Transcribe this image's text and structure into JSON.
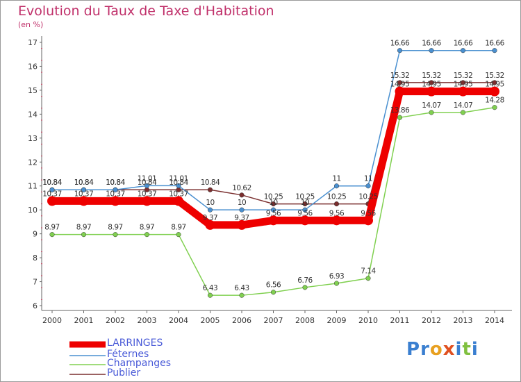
{
  "title": "Evolution du Taux de Taxe d'Habitation",
  "subtitle": "(en %)",
  "logo_text": "Proxiti",
  "colors": {
    "title": "#c0306a",
    "legend_text": "#4a5bd8",
    "axis": "#555555",
    "grid": "#ececec"
  },
  "chart_data": {
    "type": "line",
    "title": "Evolution du Taux de Taxe d'Habitation",
    "ylabel": "(en %)",
    "xlabel": "",
    "categories": [
      "2000",
      "2001",
      "2002",
      "2003",
      "2004",
      "2005",
      "2006",
      "2007",
      "2008",
      "2009",
      "2010",
      "2011",
      "2012",
      "2013",
      "2014"
    ],
    "ylim": [
      6,
      17
    ],
    "yticks": [
      6,
      7,
      8,
      9,
      10,
      11,
      12,
      13,
      14,
      15,
      16,
      17
    ],
    "grid": false,
    "legend_position": "bottom-left",
    "series": [
      {
        "name": "LARRINGES",
        "color": "#ee0000",
        "values": [
          10.37,
          10.37,
          10.37,
          10.37,
          10.37,
          9.37,
          9.37,
          9.56,
          9.56,
          9.56,
          9.56,
          14.95,
          14.95,
          14.95,
          14.95
        ],
        "labels": [
          "10.37",
          "10.37",
          "10.37",
          "10.37",
          "10.37",
          "9.37",
          "9.37",
          "9.56",
          "9.56",
          "9.56",
          "9.56",
          "14.95",
          "14.95",
          "14.95",
          "14.95"
        ]
      },
      {
        "name": "Féternes",
        "color": "#4a90d0",
        "values": [
          10.84,
          10.84,
          10.84,
          11.01,
          11.01,
          10,
          10,
          10,
          10,
          11,
          11,
          16.66,
          16.66,
          16.66,
          16.66
        ],
        "labels": [
          "10.84",
          "10.84",
          "10.84",
          "11.01",
          "11.01",
          "10",
          "10",
          "10",
          "10",
          "11",
          "11",
          "16.66",
          "16.66",
          "16.66",
          "16.66"
        ]
      },
      {
        "name": "Champanges",
        "color": "#80d050",
        "values": [
          8.97,
          8.97,
          8.97,
          8.97,
          8.97,
          6.43,
          6.43,
          6.56,
          6.76,
          6.93,
          7.14,
          13.86,
          14.07,
          14.07,
          14.28
        ],
        "labels": [
          "8.97",
          "8.97",
          "8.97",
          "8.97",
          "8.97",
          "6.43",
          "6.43",
          "6.56",
          "6.76",
          "6.93",
          "7.14",
          "13.86",
          "14.07",
          "14.07",
          "14.28"
        ]
      },
      {
        "name": "Publier",
        "color": "#7a2e2e",
        "values": [
          10.84,
          10.84,
          10.84,
          10.84,
          10.84,
          10.84,
          10.62,
          10.25,
          10.25,
          10.25,
          10.25,
          15.32,
          15.32,
          15.32,
          15.32
        ],
        "labels": [
          "10.84",
          "10.84",
          "10.84",
          "10.84",
          "10.84",
          "10.84",
          "10.62",
          "10.25",
          "10.25",
          "10.25",
          "10.25",
          "15.32",
          "15.32",
          "15.32",
          "15.32"
        ]
      }
    ]
  }
}
